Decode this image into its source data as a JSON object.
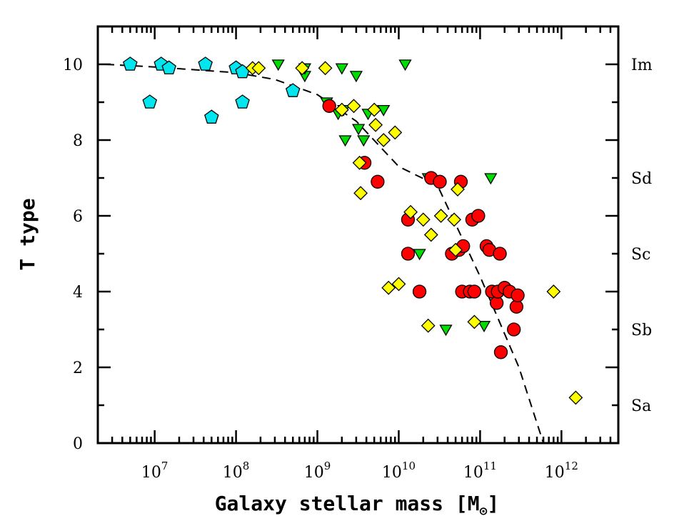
{
  "chart_data": {
    "type": "scatter",
    "x_scale": "log",
    "xlabel": "Galaxy stellar mass [M",
    "xlabel_sub": "⊙",
    "xlabel_close": "]",
    "ylabel": "T type",
    "xlim": [
      2000000,
      5000000000000
    ],
    "ylim": [
      0,
      11
    ],
    "x_ticks": [
      {
        "exp": "7",
        "value": 10000000
      },
      {
        "exp": "8",
        "value": 100000000
      },
      {
        "exp": "9",
        "value": 1000000000
      },
      {
        "exp": "10",
        "value": 10000000000
      },
      {
        "exp": "11",
        "value": 100000000000
      },
      {
        "exp": "12",
        "value": 1000000000000
      }
    ],
    "x_tick_base": "10",
    "y_ticks": [
      "0",
      "2",
      "4",
      "6",
      "8",
      "10"
    ],
    "type_labels": [
      {
        "label": "Im",
        "t": 10
      },
      {
        "label": "Sd",
        "t": 7
      },
      {
        "label": "Sc",
        "t": 5
      },
      {
        "label": "Sb",
        "t": 3
      },
      {
        "label": "Sa",
        "t": 1
      }
    ],
    "series": [
      {
        "marker": "pentagon",
        "color": "#00e5ee",
        "points": [
          [
            5000000,
            10
          ],
          [
            8700000,
            9
          ],
          [
            12000000,
            10
          ],
          [
            15000000,
            9.9
          ],
          [
            42000000,
            10
          ],
          [
            50000000,
            8.6
          ],
          [
            100000000,
            9.9
          ],
          [
            120000000,
            9.8
          ],
          [
            120000000,
            9
          ],
          [
            500000000,
            9.3
          ]
        ]
      },
      {
        "marker": "triangle-down",
        "color": "#00dd00",
        "points": [
          [
            330000000,
            10
          ],
          [
            700000000,
            9.7
          ],
          [
            700000000,
            9.9
          ],
          [
            1300000000,
            9
          ],
          [
            1800000000,
            8.7
          ],
          [
            2000000000,
            9.9
          ],
          [
            2100000000,
            8.8
          ],
          [
            2200000000,
            8
          ],
          [
            3000000000,
            9.7
          ],
          [
            3200000000,
            8.3
          ],
          [
            3700000000,
            8
          ],
          [
            4200000000,
            8.7
          ],
          [
            6500000000,
            8.8
          ],
          [
            12000000000,
            10
          ],
          [
            18000000000,
            5
          ],
          [
            23000000000,
            7
          ],
          [
            38000000000,
            3
          ],
          [
            112000000000,
            3.1
          ],
          [
            135000000000,
            7
          ]
        ]
      },
      {
        "marker": "circle",
        "color": "#ff0000",
        "points": [
          [
            1400000000,
            8.9
          ],
          [
            3800000000,
            7.4
          ],
          [
            5500000000,
            6.9
          ],
          [
            13000000000,
            5
          ],
          [
            13000000000,
            5.9
          ],
          [
            18000000000,
            4
          ],
          [
            25000000000,
            7
          ],
          [
            32000000000,
            6.9
          ],
          [
            45000000000,
            5
          ],
          [
            55000000000,
            5.1
          ],
          [
            58000000000,
            6.9
          ],
          [
            60000000000,
            4
          ],
          [
            62000000000,
            5.2
          ],
          [
            75000000000,
            4
          ],
          [
            80000000000,
            5.9
          ],
          [
            85000000000,
            4
          ],
          [
            95000000000,
            6
          ],
          [
            120000000000,
            5.2
          ],
          [
            130000000000,
            5.1
          ],
          [
            140000000000,
            4
          ],
          [
            160000000000,
            3.7
          ],
          [
            165000000000,
            4
          ],
          [
            175000000000,
            5
          ],
          [
            180000000000,
            2.4
          ],
          [
            200000000000,
            4.1
          ],
          [
            230000000000,
            4
          ],
          [
            260000000000,
            3
          ],
          [
            280000000000,
            3.6
          ],
          [
            290000000000,
            3.9
          ]
        ]
      },
      {
        "marker": "diamond",
        "color": "#ffff00",
        "points": [
          [
            160000000,
            9.9
          ],
          [
            190000000,
            9.9
          ],
          [
            650000000,
            9.9
          ],
          [
            1250000000,
            9.9
          ],
          [
            2000000000,
            8.8
          ],
          [
            2800000000,
            8.9
          ],
          [
            3300000000,
            7.4
          ],
          [
            3400000000,
            6.6
          ],
          [
            5000000000,
            8.8
          ],
          [
            5200000000,
            8.4
          ],
          [
            6500000000,
            8
          ],
          [
            7500000000,
            4.1
          ],
          [
            9000000000,
            8.2
          ],
          [
            10000000000,
            4.2
          ],
          [
            14000000000,
            6.1
          ],
          [
            20000000000,
            5.9
          ],
          [
            23000000000,
            3.1
          ],
          [
            25000000000,
            5.5
          ],
          [
            33000000000,
            6
          ],
          [
            48000000000,
            5.9
          ],
          [
            50000000000,
            5.1
          ],
          [
            53000000000,
            6.7
          ],
          [
            85000000000,
            3.2
          ],
          [
            800000000000,
            4
          ],
          [
            1500000000000,
            1.2
          ]
        ]
      }
    ],
    "fit_line": [
      [
        2500000,
        10
      ],
      [
        10000000,
        9.93
      ],
      [
        100000000,
        9.78
      ],
      [
        300000000,
        9.6
      ],
      [
        1000000000,
        9.2
      ],
      [
        3000000000,
        8.5
      ],
      [
        10000000000,
        7.3
      ],
      [
        30000000000,
        6.8
      ],
      [
        100000000000,
        4.4
      ],
      [
        300000000000,
        2
      ],
      [
        600000000000,
        0
      ]
    ]
  }
}
